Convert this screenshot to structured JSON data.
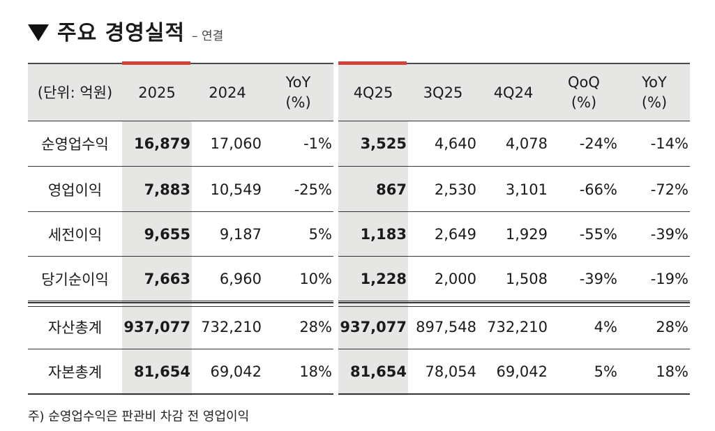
{
  "header": {
    "title": "주요 경영실적",
    "subtitle": "– 연결"
  },
  "left_table": {
    "columns": [
      "(단위: 억원)",
      "2025",
      "2024",
      "YoY\n(%)"
    ],
    "rows": [
      [
        "순영업수익",
        "16,879",
        "17,060",
        "-1%"
      ],
      [
        "영업이익",
        "7,883",
        "10,549",
        "-25%"
      ],
      [
        "세전이익",
        "9,655",
        "9,187",
        "5%"
      ],
      [
        "당기순이익",
        "7,663",
        "6,960",
        "10%"
      ],
      [
        "자산총계",
        "937,077",
        "732,210",
        "28%"
      ],
      [
        "자본총계",
        "81,654",
        "69,042",
        "18%"
      ]
    ]
  },
  "right_table": {
    "columns": [
      "4Q25",
      "3Q25",
      "4Q24",
      "QoQ\n(%)",
      "YoY\n(%)"
    ],
    "rows": [
      [
        "3,525",
        "4,640",
        "4,078",
        "-24%",
        "-14%"
      ],
      [
        "867",
        "2,530",
        "3,101",
        "-66%",
        "-72%"
      ],
      [
        "1,183",
        "2,649",
        "1,929",
        "-55%",
        "-39%"
      ],
      [
        "1,228",
        "2,000",
        "1,508",
        "-39%",
        "-19%"
      ],
      [
        "937,077",
        "897,548",
        "732,210",
        "4%",
        "28%"
      ],
      [
        "81,654",
        "78,054",
        "69,042",
        "5%",
        "18%"
      ]
    ]
  },
  "footnote": "주) 순영업수익은 판관비 차감 전 영업이익",
  "colors": {
    "accent": "#d0453a",
    "highlight": "#e6e6e4",
    "rule": "#333333"
  }
}
